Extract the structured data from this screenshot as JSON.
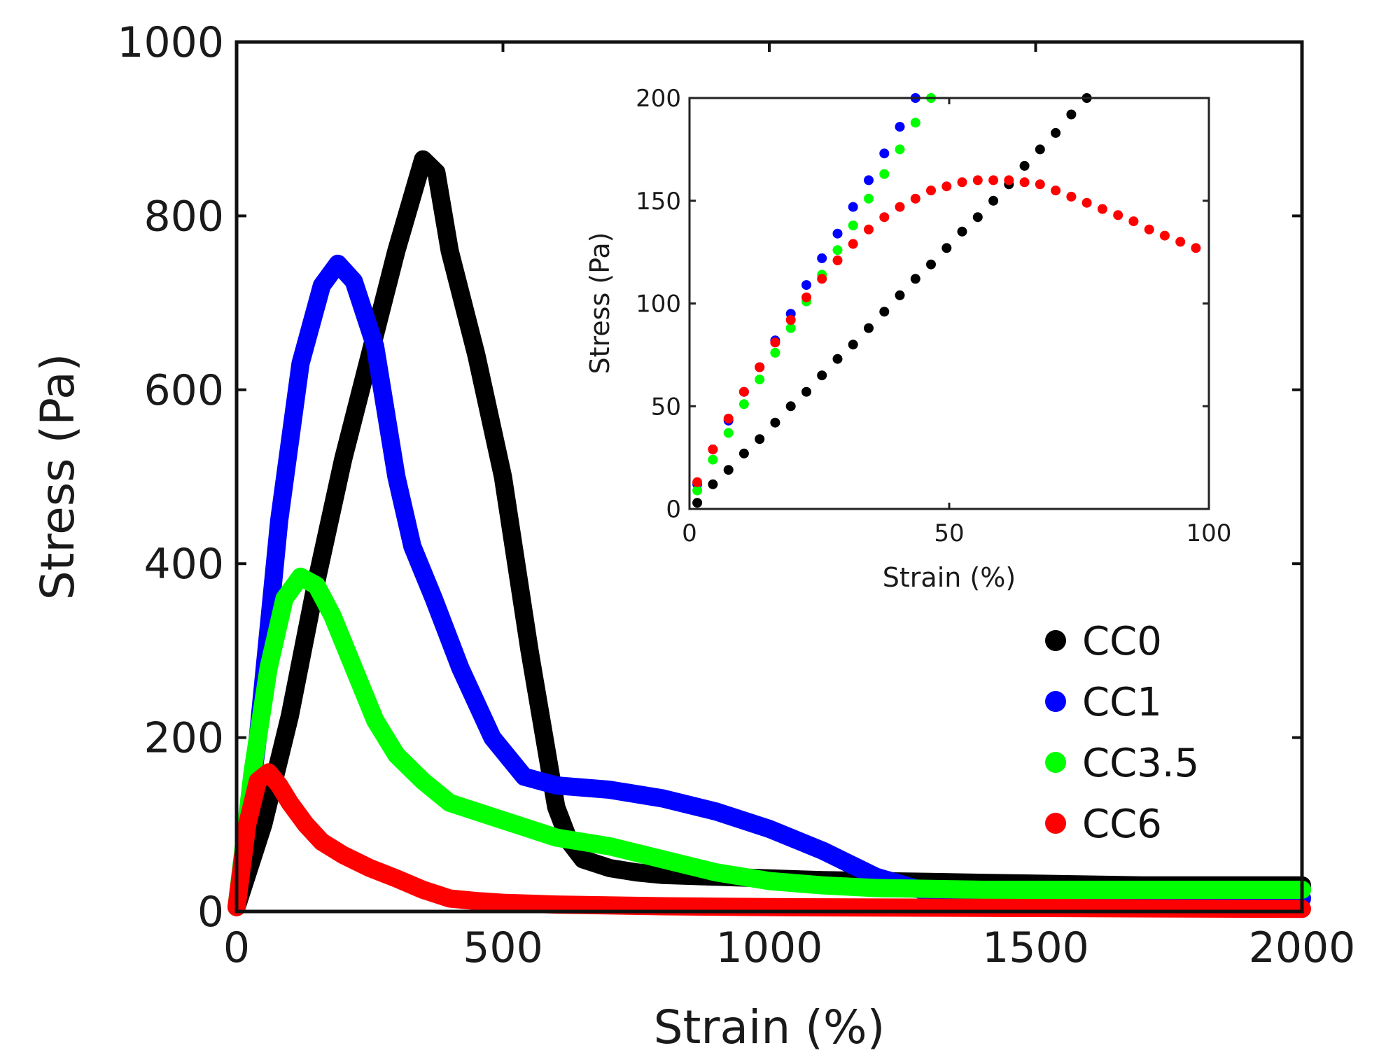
{
  "chart_data": [
    {
      "type": "scatter",
      "title": "",
      "xlabel": "Strain (%)",
      "ylabel": "Stress (Pa)",
      "xlim": [
        0,
        2000
      ],
      "ylim": [
        0,
        1000
      ],
      "xticks": [
        "0",
        "500",
        "1000",
        "1500",
        "2000"
      ],
      "yticks": [
        "0",
        "200",
        "400",
        "600",
        "800",
        "1000"
      ],
      "legend": "inside-right",
      "series": [
        {
          "name": "CC0",
          "color": "#000000",
          "x": [
            0,
            50,
            100,
            150,
            200,
            250,
            300,
            350,
            375,
            400,
            450,
            500,
            550,
            600,
            625,
            650,
            700,
            750,
            800,
            900,
            1000,
            1100,
            1200,
            1300,
            1500,
            1700,
            2000
          ],
          "y": [
            5,
            100,
            225,
            380,
            520,
            640,
            760,
            865,
            850,
            760,
            640,
            500,
            300,
            120,
            80,
            60,
            50,
            45,
            42,
            40,
            38,
            36,
            35,
            34,
            32,
            30,
            30
          ]
        },
        {
          "name": "CC1",
          "color": "#0000ff",
          "x": [
            0,
            40,
            80,
            120,
            160,
            190,
            220,
            260,
            300,
            330,
            370,
            420,
            480,
            540,
            600,
            700,
            800,
            900,
            1000,
            1100,
            1200,
            1300,
            1500,
            2000
          ],
          "y": [
            5,
            200,
            450,
            630,
            720,
            745,
            725,
            650,
            500,
            420,
            360,
            280,
            200,
            155,
            145,
            140,
            130,
            115,
            95,
            70,
            40,
            22,
            18,
            15
          ]
        },
        {
          "name": "CC3.5",
          "color": "#00ff00",
          "x": [
            0,
            30,
            60,
            90,
            120,
            150,
            180,
            220,
            260,
            300,
            350,
            400,
            500,
            600,
            700,
            800,
            900,
            1000,
            1100,
            1200,
            1400,
            1600,
            2000
          ],
          "y": [
            5,
            160,
            280,
            360,
            385,
            375,
            340,
            280,
            220,
            180,
            150,
            125,
            105,
            85,
            75,
            60,
            45,
            35,
            30,
            27,
            25,
            25,
            25
          ]
        },
        {
          "name": "CC6",
          "color": "#ff0000",
          "x": [
            0,
            20,
            40,
            60,
            80,
            100,
            130,
            160,
            200,
            250,
            300,
            350,
            400,
            450,
            500,
            600,
            800,
            1000,
            1500,
            2000
          ],
          "y": [
            5,
            100,
            150,
            160,
            145,
            125,
            100,
            80,
            65,
            50,
            38,
            25,
            15,
            12,
            10,
            8,
            6,
            5,
            4,
            3
          ]
        }
      ]
    },
    {
      "type": "scatter",
      "title": "",
      "xlabel": "Strain (%)",
      "ylabel": "Stress (Pa)",
      "xlim": [
        0,
        100
      ],
      "ylim": [
        0,
        200
      ],
      "xticks": [
        "0",
        "50",
        "100"
      ],
      "yticks": [
        "0",
        "50",
        "100",
        "150",
        "200"
      ],
      "series": [
        {
          "name": "CC0",
          "color": "#000000",
          "x": [
            1.5,
            4.5,
            7.5,
            10.5,
            13.5,
            16.5,
            19.5,
            22.5,
            25.5,
            28.5,
            31.5,
            34.5,
            37.5,
            40.5,
            43.5,
            46.5,
            49.5,
            52.5,
            55.5,
            58.5,
            61.5,
            64.5,
            67.5,
            70.5,
            73.5,
            76.5
          ],
          "y": [
            3,
            12,
            19,
            27,
            34,
            42,
            50,
            57,
            65,
            73,
            80,
            88,
            96,
            104,
            112,
            119,
            127,
            135,
            142,
            150,
            158,
            167,
            175,
            183,
            192,
            200
          ]
        },
        {
          "name": "CC1",
          "color": "#0000ff",
          "x": [
            1.5,
            4.5,
            7.5,
            10.5,
            13.5,
            16.5,
            19.5,
            22.5,
            25.5,
            28.5,
            31.5,
            34.5,
            37.5,
            40.5,
            43.5
          ],
          "y": [
            12,
            29,
            43,
            57,
            69,
            82,
            95,
            109,
            122,
            134,
            147,
            160,
            173,
            186,
            200
          ]
        },
        {
          "name": "CC3.5",
          "color": "#00ff00",
          "x": [
            1.5,
            4.5,
            7.5,
            10.5,
            13.5,
            16.5,
            19.5,
            22.5,
            25.5,
            28.5,
            31.5,
            34.5,
            37.5,
            40.5,
            43.5,
            46.5
          ],
          "y": [
            9,
            24,
            37,
            51,
            63,
            76,
            88,
            101,
            114,
            126,
            138,
            151,
            163,
            175,
            188,
            200
          ]
        },
        {
          "name": "CC6",
          "color": "#ff0000",
          "x": [
            1.5,
            4.5,
            7.5,
            10.5,
            13.5,
            16.5,
            19.5,
            22.5,
            25.5,
            28.5,
            31.5,
            34.5,
            37.5,
            40.5,
            43.5,
            46.5,
            49.5,
            52.5,
            55.5,
            58.5,
            61.5,
            64.5,
            67.5,
            70.5,
            73.5,
            76.5,
            79.5,
            82.5,
            85.5,
            88.5,
            91.5,
            94.5,
            97.5
          ],
          "y": [
            13,
            29,
            44,
            57,
            69,
            81,
            92,
            103,
            112,
            121,
            129,
            136,
            142,
            147,
            151,
            155,
            157,
            159,
            160,
            160,
            160,
            159,
            158,
            155,
            152,
            149,
            146,
            143,
            140,
            136,
            133,
            130,
            127
          ]
        }
      ]
    }
  ]
}
